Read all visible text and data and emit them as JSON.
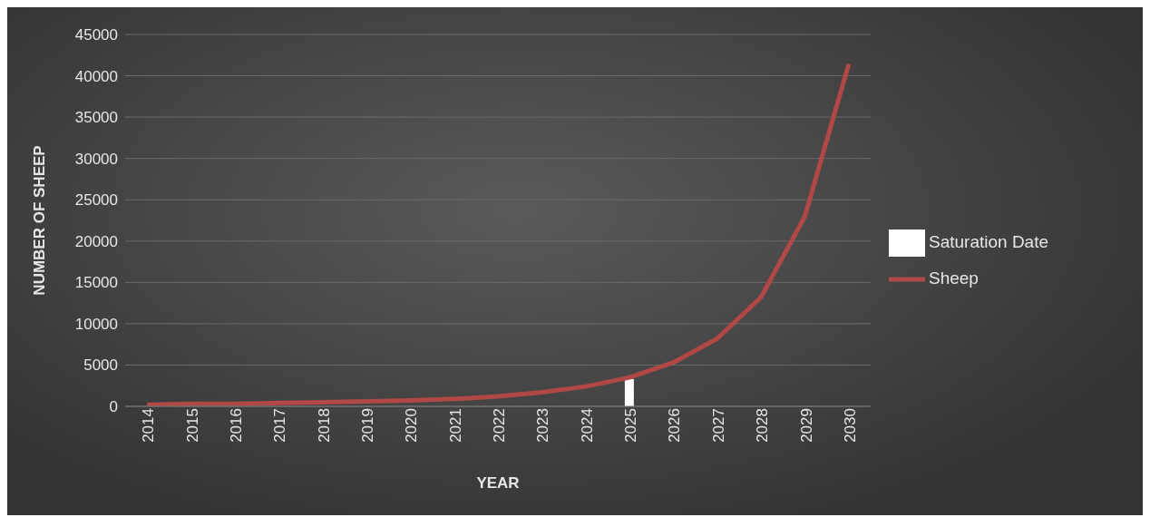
{
  "chart_data": {
    "type": "line",
    "xlabel": "YEAR",
    "ylabel": "NUMBER OF SHEEP",
    "categories": [
      "2014",
      "2015",
      "2016",
      "2017",
      "2018",
      "2019",
      "2020",
      "2021",
      "2022",
      "2023",
      "2024",
      "2025",
      "2026",
      "2027",
      "2028",
      "2029",
      "2030"
    ],
    "series": [
      {
        "name": "Saturation Date",
        "type": "bar",
        "color": "#ffffff",
        "values": [
          null,
          null,
          null,
          null,
          null,
          null,
          null,
          null,
          null,
          null,
          null,
          3300,
          null,
          null,
          null,
          null,
          null
        ]
      },
      {
        "name": "Sheep",
        "color": "#b04845",
        "values": [
          200,
          300,
          300,
          400,
          500,
          600,
          700,
          900,
          1200,
          1700,
          2400,
          3500,
          5300,
          8200,
          13200,
          23000,
          41400
        ]
      }
    ],
    "ylim": [
      0,
      45000
    ],
    "yticks": [
      0,
      5000,
      10000,
      15000,
      20000,
      25000,
      30000,
      35000,
      40000,
      45000
    ],
    "grid": "y",
    "legend": "right",
    "marker": "none",
    "line_style": "solid"
  }
}
